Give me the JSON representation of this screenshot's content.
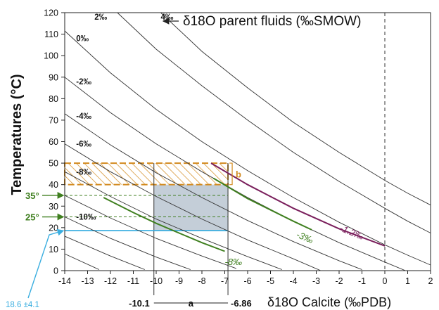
{
  "chart_data": {
    "type": "line",
    "title": "δ18O parent fluids (‰SMOW)",
    "xlabel": "δ18O Calcite (‰PDB)",
    "ylabel": "Temperatures (°C)",
    "xlim": [
      -14,
      2
    ],
    "ylim": [
      0,
      120
    ],
    "x_ticks": [
      -14,
      -13,
      -12,
      -11,
      -10,
      -9,
      -8,
      -7,
      -6,
      -5,
      -4,
      -3,
      -2,
      -1,
      0,
      1,
      2
    ],
    "y_ticks": [
      0,
      10,
      20,
      30,
      40,
      50,
      60,
      70,
      80,
      90,
      100,
      110,
      120
    ],
    "grid": "vertical dashed line at x=0",
    "isotherm_series": [
      {
        "name": "2‰",
        "label_x": -12.7,
        "label_y": 118,
        "points": [
          [
            -11.7,
            120
          ],
          [
            -10,
            103
          ],
          [
            -8,
            86
          ],
          [
            -6,
            70
          ],
          [
            -4,
            55
          ],
          [
            -2,
            41.5
          ],
          [
            0,
            29
          ],
          [
            1,
            23
          ],
          [
            2,
            17.5
          ]
        ]
      },
      {
        "name": "4‰",
        "label_x": -9.8,
        "label_y": 118,
        "points": [
          [
            -9.8,
            120
          ],
          [
            -8,
            102
          ],
          [
            -6,
            85
          ],
          [
            -4,
            69
          ],
          [
            -2,
            55
          ],
          [
            0,
            42
          ],
          [
            1,
            36
          ],
          [
            2,
            30.5
          ]
        ]
      },
      {
        "name": "0‰",
        "label_x": -13.5,
        "label_y": 108,
        "points": [
          [
            -14,
            111.5
          ],
          [
            -12,
            92
          ],
          [
            -10,
            75
          ],
          [
            -8,
            60
          ],
          [
            -6,
            46.5
          ],
          [
            -4,
            34
          ],
          [
            -2,
            22.5
          ],
          [
            0,
            12
          ],
          [
            1,
            7.2
          ],
          [
            2,
            2.6
          ]
        ]
      },
      {
        "name": "-2‰",
        "label_x": -13.5,
        "label_y": 88,
        "points": [
          [
            -14,
            90
          ],
          [
            -12,
            73.5
          ],
          [
            -10,
            59
          ],
          [
            -8,
            46
          ],
          [
            -6,
            34
          ],
          [
            -4,
            23
          ],
          [
            -2,
            13
          ],
          [
            0,
            4
          ],
          [
            0.9,
            0
          ]
        ]
      },
      {
        "name": "-4‰",
        "label_x": -13.5,
        "label_y": 72,
        "points": [
          [
            -14,
            73
          ],
          [
            -12,
            58.5
          ],
          [
            -10,
            45.5
          ],
          [
            -8,
            34
          ],
          [
            -6,
            23.3
          ],
          [
            -4,
            13.5
          ],
          [
            -2,
            4.6
          ],
          [
            -1,
            0.5
          ]
        ]
      },
      {
        "name": "-6‰",
        "label_x": -13.5,
        "label_y": 59,
        "points": [
          [
            -14,
            59
          ],
          [
            -12,
            46
          ],
          [
            -10,
            34.5
          ],
          [
            -8,
            24
          ],
          [
            -6,
            14.3
          ],
          [
            -4,
            5.5
          ],
          [
            -2.8,
            0
          ]
        ]
      },
      {
        "name": "-8‰",
        "label_x": -13.5,
        "label_y": 46,
        "points": [
          [
            -14,
            46
          ],
          [
            -12,
            34.5
          ],
          [
            -10,
            24
          ],
          [
            -8,
            15
          ],
          [
            -6,
            6.5
          ],
          [
            -4.5,
            0.5
          ]
        ]
      },
      {
        "name": "-10‰",
        "label_x": -13.5,
        "label_y": 25,
        "points": [
          [
            -14,
            35
          ],
          [
            -12,
            24.5
          ],
          [
            -10,
            15
          ],
          [
            -8,
            6.8
          ],
          [
            -6.5,
            1
          ]
        ]
      },
      {
        "name": "",
        "points": [
          [
            -14,
            25
          ],
          [
            -12,
            15
          ],
          [
            -10,
            6.3
          ],
          [
            -8.5,
            0.5
          ]
        ]
      },
      {
        "name": "",
        "points": [
          [
            -14,
            16
          ],
          [
            -12,
            6.8
          ],
          [
            -10.5,
            0.5
          ]
        ]
      },
      {
        "name": "",
        "points": [
          [
            -14,
            7.8
          ],
          [
            -12.5,
            0.5
          ]
        ]
      }
    ],
    "highlight_series": [
      {
        "name": "-1.2‰",
        "color": "#7a1f5c",
        "label_x": -2.0,
        "label_y": 20,
        "points": [
          [
            -7.6,
            50
          ],
          [
            -6,
            40
          ],
          [
            -4,
            29
          ],
          [
            -2,
            19.5
          ],
          [
            0,
            11.5
          ]
        ]
      },
      {
        "name": "-3‰",
        "color": "#3f7f1f",
        "label_x": -3.9,
        "label_y": 17,
        "points": [
          [
            -7.5,
            43
          ],
          [
            -6,
            33.5
          ],
          [
            -4,
            23
          ],
          [
            -3.2,
            19
          ]
        ]
      },
      {
        "name": "-8‰",
        "color": "#3f7f1f",
        "label_x": -7.0,
        "label_y": 4,
        "points": [
          [
            -12.3,
            34
          ],
          [
            -11,
            27
          ],
          [
            -10,
            22
          ],
          [
            -9,
            17.5
          ],
          [
            -8,
            13
          ],
          [
            -7,
            9
          ]
        ]
      }
    ],
    "annotations": {
      "hatched_band": {
        "x": [
          -14,
          -6.86
        ],
        "y": [
          40,
          50
        ],
        "label": "b",
        "color": "#d28a1e"
      },
      "shaded_box": {
        "x": [
          -10.1,
          -6.86
        ],
        "y": [
          18.6,
          40
        ],
        "color": "#c4ced8"
      },
      "range_a": {
        "label": "a",
        "from": "-10.1",
        "to": "-6.86"
      },
      "temp_35": {
        "label": "35°",
        "y": 35,
        "color": "#3f7f1f"
      },
      "temp_25": {
        "label": "25°",
        "y": 25,
        "color": "#3f7f1f"
      },
      "temp_18": {
        "label": "18.6 ±4.1",
        "y": 18.6,
        "color": "#3aaee0"
      }
    }
  }
}
